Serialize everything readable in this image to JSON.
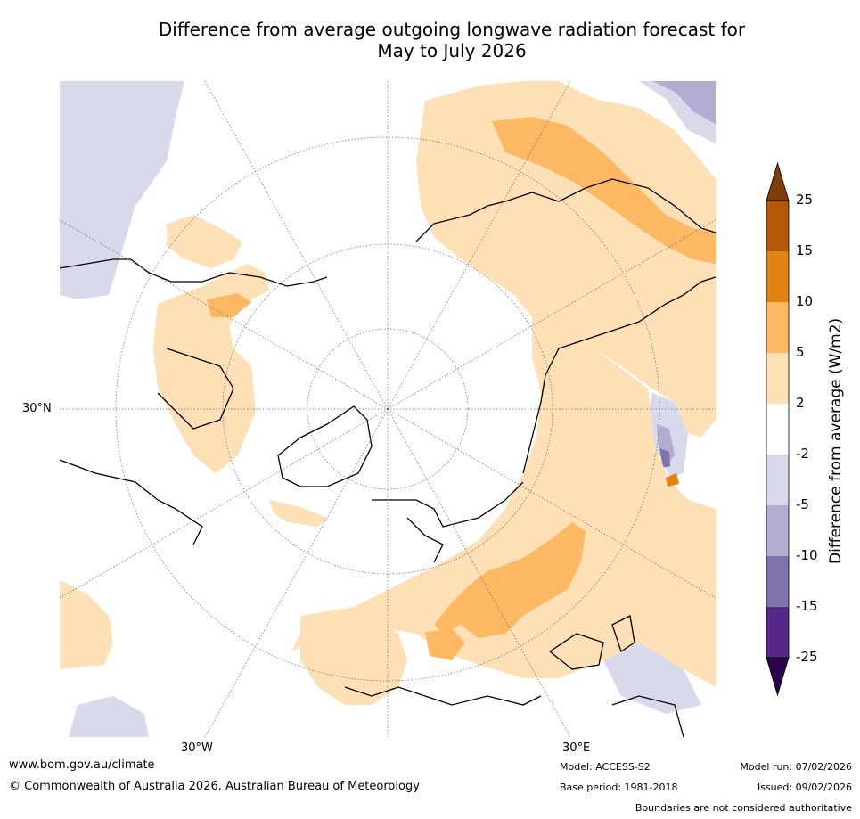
{
  "title_line1": "Difference from average outgoing longwave radiation forecast for",
  "title_line2": "May to July 2026",
  "graticule_labels": {
    "lat30": "30°N",
    "lon_w30": "30°W",
    "lon_e30": "30°E"
  },
  "colorbar": {
    "label": "Difference from average (W/m2)",
    "ticks": [
      "25",
      "15",
      "10",
      "5",
      "2",
      "-2",
      "-5",
      "-10",
      "-15",
      "-25"
    ],
    "colors": {
      "over": "#7f3b08",
      "c15_25": "#b35806",
      "c10_15": "#e08214",
      "c5_10": "#fdb863",
      "c2_5": "#fee0b6",
      "neutral": "#ffffff",
      "m5_m2": "#d8daeb",
      "m10_m5": "#b2abd2",
      "m15_m10": "#8073ac",
      "m25_m15": "#542788",
      "under": "#2d004b"
    }
  },
  "footer": {
    "url": "www.bom.gov.au/climate",
    "copyright": "© Commonwealth of Australia 2026, Australian Bureau of Meteorology",
    "model": "Model: ACCESS-S2",
    "base_period": "Base period: 1981-2018",
    "model_run": "Model run: 07/02/2026",
    "issued": "Issued: 09/02/2026",
    "disclaimer": "Boundaries are not considered authoritative"
  }
}
